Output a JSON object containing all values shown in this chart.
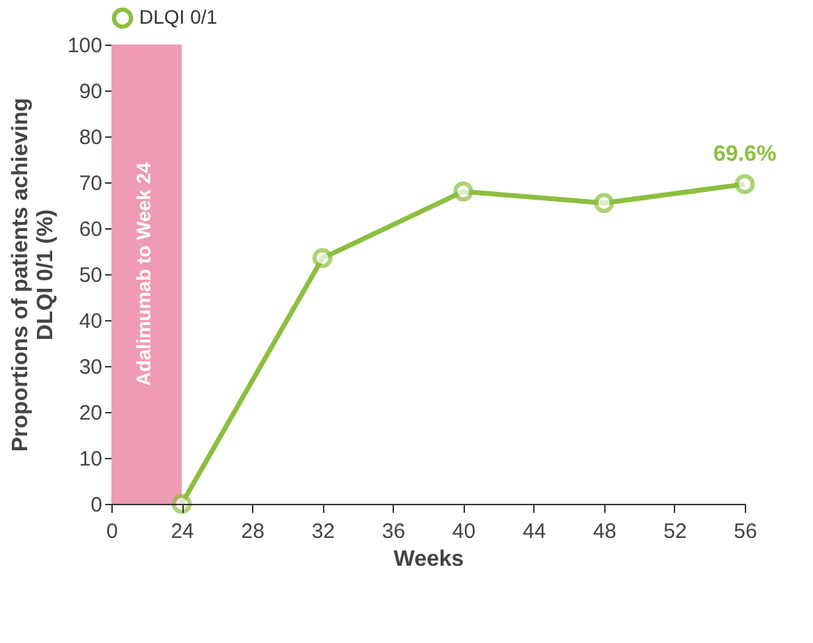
{
  "chart_data": {
    "type": "line",
    "xlabel": "Weeks",
    "ylabel": "Proportions of patients achieving\nDLQI 0/1 (%)",
    "categories": [
      "0",
      "24",
      "28",
      "32",
      "36",
      "40",
      "44",
      "48",
      "52",
      "56"
    ],
    "series": [
      {
        "name": "DLQI 0/1",
        "color": "#8cbf3f",
        "values": [
          null,
          0,
          null,
          53.5,
          null,
          68,
          null,
          65.5,
          null,
          69.6
        ]
      }
    ],
    "ylim": [
      0,
      100
    ],
    "yticks": [
      0,
      10,
      20,
      30,
      40,
      50,
      60,
      70,
      80,
      90,
      100
    ],
    "bands": [
      {
        "axis": "x",
        "from": "0",
        "to": "24",
        "label": "Adalimumab  to Week 24",
        "color": "#ee9bb3"
      }
    ],
    "annotations": [
      {
        "text": "69.6%",
        "x": "56",
        "y": 69.6
      }
    ],
    "grid": false,
    "legend": "top",
    "marker": "circle",
    "line_style": "solid"
  }
}
